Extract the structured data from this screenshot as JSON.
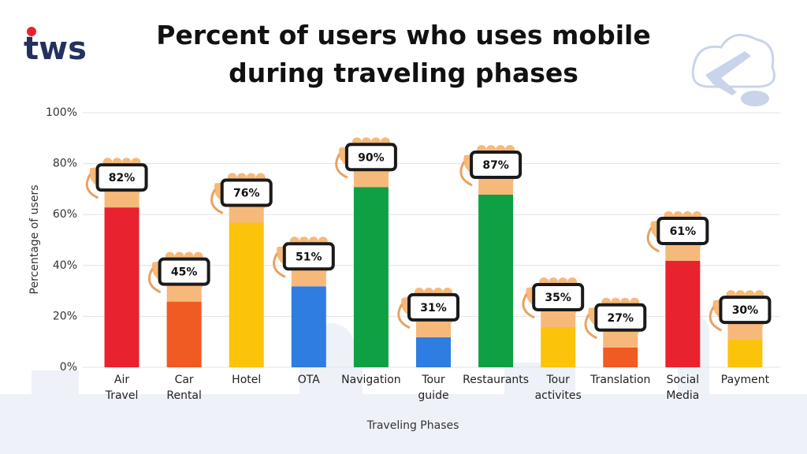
{
  "logo": "tws",
  "chart_data": {
    "type": "bar",
    "title": "Percent of users who uses mobile during traveling phases",
    "x_label": "Traveling Phases",
    "y_label": "Percentage of users",
    "categories": [
      "Air Travel",
      "Car Rental",
      "Hotel",
      "OTA",
      "Navigation",
      "Tour guide",
      "Restaurants",
      "Tour activites",
      "Translation",
      "Social Media",
      "Payment"
    ],
    "values": [
      82,
      45,
      76,
      51,
      90,
      31,
      87,
      35,
      27,
      61,
      30
    ],
    "value_labels": [
      "82%",
      "45%",
      "76%",
      "51%",
      "90%",
      "31%",
      "87%",
      "35%",
      "27%",
      "61%",
      "30%"
    ],
    "colors": [
      "#e8232f",
      "#f05a23",
      "#fbc30a",
      "#2f7de1",
      "#0fa043",
      "#2f7de1",
      "#0fa043",
      "#fbc30a",
      "#f05a23",
      "#e8232f",
      "#fbc30a"
    ],
    "ylim": [
      0,
      100
    ],
    "yticks": [
      {
        "value": 0,
        "label": "0%"
      },
      {
        "value": 20,
        "label": "20%"
      },
      {
        "value": 40,
        "label": "40%"
      },
      {
        "value": 60,
        "label": "60%"
      },
      {
        "value": 80,
        "label": "80%"
      },
      {
        "value": 100,
        "label": "100%"
      }
    ],
    "grid": true
  }
}
